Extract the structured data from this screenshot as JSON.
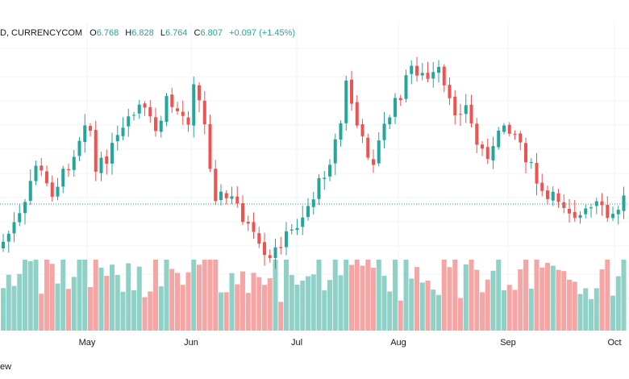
{
  "header": {
    "symbol": "D, CURRENCYCOM",
    "o_label": "O",
    "o_value": "6.768",
    "h_label": "H",
    "h_value": "6.828",
    "l_label": "L",
    "l_value": "6.764",
    "c_label": "C",
    "c_value": "6.807",
    "change": "+0.097 (+1.45%)"
  },
  "footer": {
    "watermark": "ew"
  },
  "colors": {
    "up": "#26a69a",
    "down": "#ef5350",
    "up_vol": "#8fd1c6",
    "down_vol": "#f6a5a5",
    "grid": "#f0f3fa",
    "last_price_line": "#26a69a"
  },
  "chart_data": {
    "type": "candlestick",
    "x_tick_labels": [
      "May",
      "Jun",
      "Jul",
      "Aug",
      "Sep",
      "Oct"
    ],
    "price_range_unlabeled": true,
    "last_price_line": true,
    "candles": [
      {
        "o": 262,
        "c": 247,
        "h": 263,
        "l": 245,
        "v": 12
      },
      {
        "o": 245,
        "c": 240,
        "h": 248,
        "l": 236,
        "v": 13
      },
      {
        "o": 240,
        "c": 233,
        "h": 242,
        "l": 230,
        "v": 15
      },
      {
        "o": 236,
        "c": 238,
        "h": 241,
        "l": 232,
        "v": 10
      },
      {
        "o": 235,
        "c": 228,
        "h": 238,
        "l": 224,
        "v": 14
      },
      {
        "o": 228,
        "c": 220,
        "h": 230,
        "l": 215,
        "v": 15
      },
      {
        "o": 225,
        "c": 220,
        "h": 228,
        "l": 215,
        "v": 12
      },
      {
        "o": 220,
        "c": 210,
        "h": 222,
        "l": 205,
        "v": 15
      },
      {
        "o": 210,
        "c": 205,
        "h": 213,
        "l": 203,
        "v": 17
      },
      {
        "o": 205,
        "c": 200,
        "h": 208,
        "l": 198,
        "v": 18
      },
      {
        "o": 205,
        "c": 195,
        "h": 208,
        "l": 192,
        "v": 20
      },
      {
        "o": 190,
        "c": 175,
        "h": 193,
        "l": 172,
        "v": 22
      },
      {
        "o": 180,
        "c": 187,
        "h": 190,
        "l": 175,
        "v": 18
      },
      {
        "o": 190,
        "c": 180,
        "h": 193,
        "l": 175,
        "v": 28
      },
      {
        "o": 165,
        "c": 155,
        "h": 168,
        "l": 150,
        "v": 18
      },
      {
        "o": 155,
        "c": 145,
        "h": 158,
        "l": 142,
        "v": 17
      },
      {
        "o": 145,
        "c": 138,
        "h": 148,
        "l": 135,
        "v": 15
      },
      {
        "o": 138,
        "c": 132,
        "h": 141,
        "l": 128,
        "v": 17
      },
      {
        "o": 135,
        "c": 128,
        "h": 138,
        "l": 125,
        "v": 18
      },
      {
        "o": 122,
        "c": 117,
        "h": 125,
        "l": 113,
        "v": 17
      },
      {
        "o": 117,
        "c": 108,
        "h": 120,
        "l": 105,
        "v": 18
      },
      {
        "o": 108,
        "c": 98,
        "h": 111,
        "l": 95,
        "v": 22
      },
      {
        "o": 105,
        "c": 98,
        "h": 108,
        "l": 94,
        "v": 18
      },
      {
        "o": 98,
        "c": 90,
        "h": 100,
        "l": 87,
        "v": 25
      },
      {
        "o": 95,
        "c": 88,
        "h": 99,
        "l": 85,
        "v": 28
      },
      {
        "o": 92,
        "c": 85,
        "h": 95,
        "l": 82,
        "v": 24
      },
      {
        "o": 88,
        "c": 82,
        "h": 92,
        "l": 78,
        "v": 26
      },
      {
        "o": 87,
        "c": 85,
        "h": 90,
        "l": 82,
        "v": 28
      },
      {
        "o": 92,
        "c": 88,
        "h": 96,
        "l": 84,
        "v": 20
      },
      {
        "o": 97,
        "c": 95,
        "h": 102,
        "l": 92,
        "v": 22
      }
    ]
  }
}
